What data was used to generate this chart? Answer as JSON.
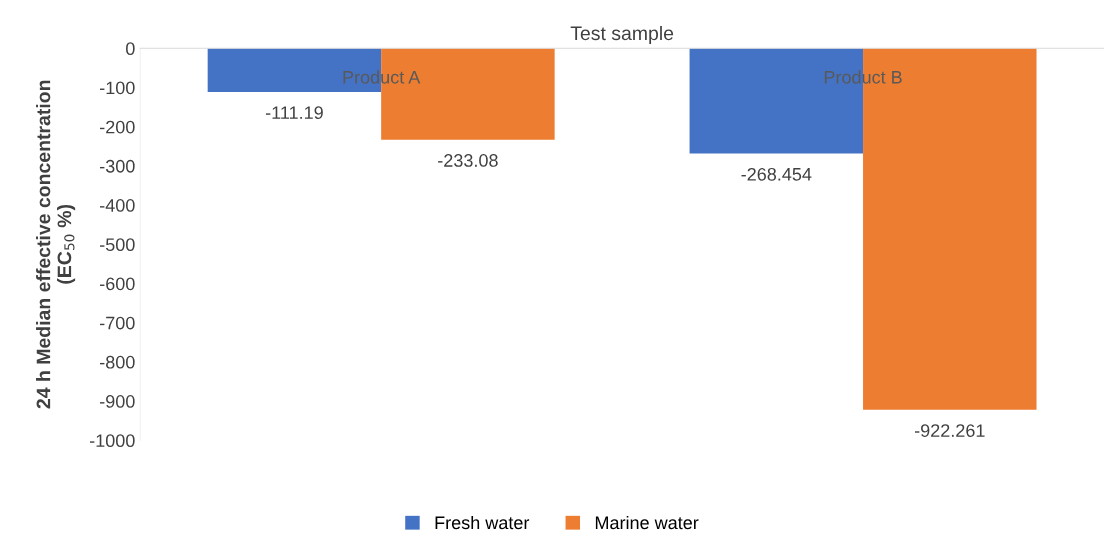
{
  "chart_data": {
    "type": "bar",
    "xlabel": "Test sample",
    "ylabel": "24 h Median effective concentration\n(EC$_{50}$ %)",
    "categories": [
      "Product A",
      "Product B"
    ],
    "series": [
      {
        "name": "Fresh water",
        "color": "#4472c4",
        "values": [
          -111.19,
          -268.454
        ]
      },
      {
        "name": "Marine water",
        "color": "#ed7d31",
        "values": [
          -233.08,
          -922.261
        ]
      }
    ],
    "ylim": [
      -1000,
      0
    ],
    "yticks": [
      {
        "value": 0,
        "label": "0"
      },
      {
        "value": -100,
        "label": "-100"
      },
      {
        "value": -200,
        "label": "-200"
      },
      {
        "value": -300,
        "label": "-300"
      },
      {
        "value": -400,
        "label": "-400"
      },
      {
        "value": -500,
        "label": "-500"
      },
      {
        "value": -600,
        "label": "-600"
      },
      {
        "value": -700,
        "label": "-700"
      },
      {
        "value": -800,
        "label": "-800"
      },
      {
        "value": -900,
        "label": "-900"
      },
      {
        "value": -1000,
        "label": "-1000"
      }
    ],
    "data_labels": true,
    "grid": false,
    "legend": "bottom"
  }
}
